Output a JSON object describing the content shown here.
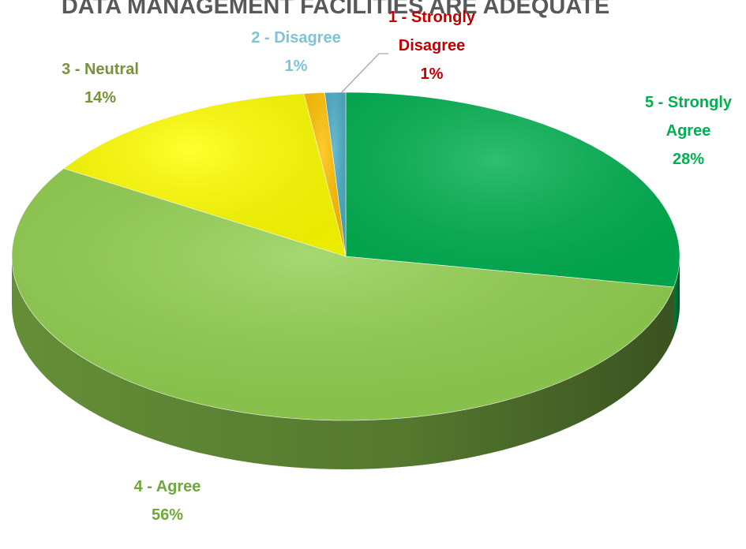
{
  "chart_data": {
    "type": "pie3d",
    "title": "DATA MANAGEMENT FACILITIES ARE ADEQUATE",
    "categories": [
      "5 - Strongly Agree",
      "4 - Agree",
      "3 - Neutral",
      "2 - Disagree",
      "1 - Strongly Disagree"
    ],
    "values": [
      28,
      56,
      14,
      1,
      1
    ],
    "value_labels": [
      "28%",
      "56%",
      "14%",
      "1%",
      "1%"
    ],
    "colors": [
      "#00b050",
      "#92d050",
      "#ffff00",
      "#ffc000",
      "#4bacc6"
    ],
    "label_colors": [
      "#00b050",
      "#6fa83a",
      "#76923c",
      "#7fc3d6",
      "#c00000"
    ]
  }
}
